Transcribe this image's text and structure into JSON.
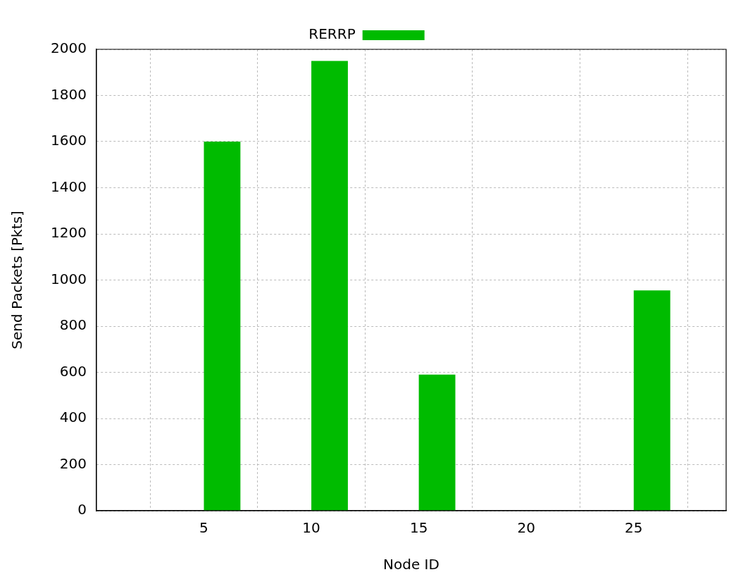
{
  "chart_data": {
    "type": "bar",
    "xlabel": "Node ID",
    "ylabel": "Send Packets [Pkts]",
    "x": [
      5.85,
      10.85,
      15.85,
      25.85
    ],
    "series": [
      {
        "name": "RERRP",
        "color": "#00bb00",
        "values": [
          1600,
          1950,
          590,
          955
        ]
      }
    ],
    "xlim": [
      0,
      29.3
    ],
    "xticks": [
      5,
      10,
      15,
      20,
      25
    ],
    "ylim": [
      0,
      2000
    ],
    "yticks": [
      0,
      200,
      400,
      600,
      800,
      1000,
      1200,
      1400,
      1600,
      1800,
      2000
    ],
    "grid": true,
    "legend": "top"
  }
}
